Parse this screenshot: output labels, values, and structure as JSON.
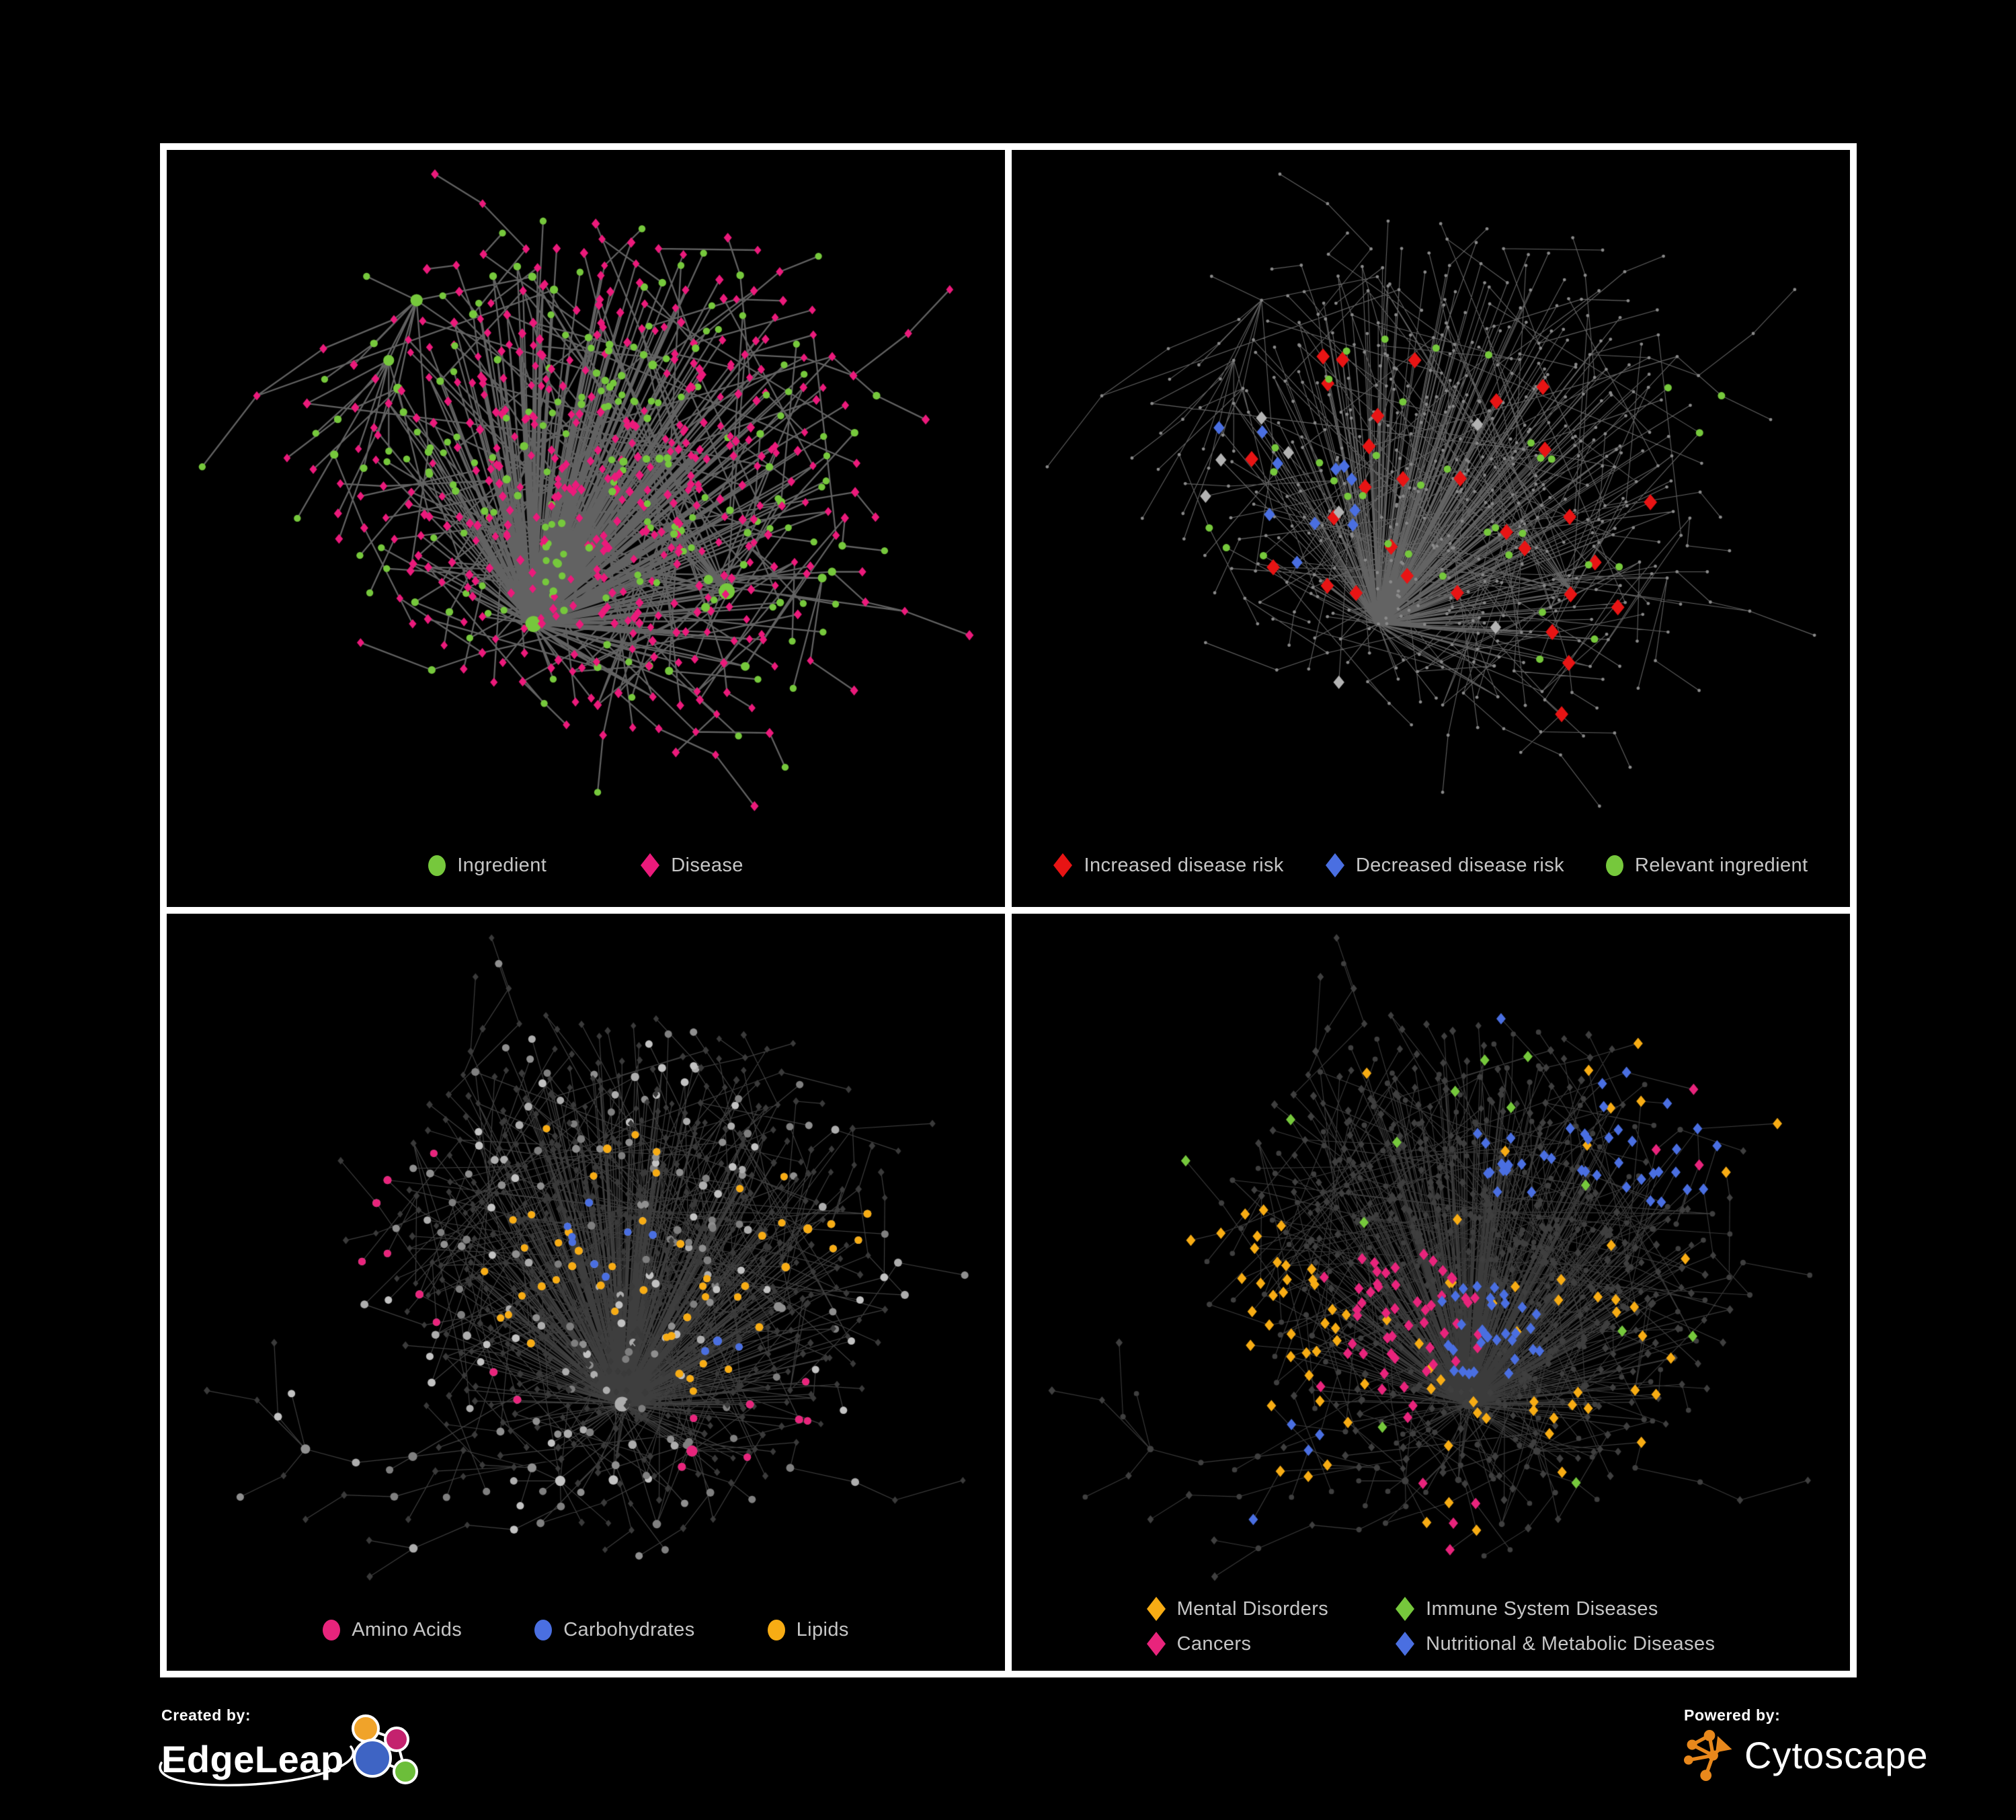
{
  "page": {
    "background": "#000000",
    "panel_border": "#FFFFFF",
    "legend_text_color": "#C6C6C6"
  },
  "footer": {
    "created_by_label": "Created by:",
    "edgeleap_name": "EdgeLeap",
    "powered_by_label": "Powered by:",
    "cytoscape_name": "Cytoscape",
    "cytoscape_orange": "#E8881C",
    "edgeleap_colors": {
      "orange": "#F0A32A",
      "magenta": "#C4226E",
      "blue": "#3E64C4",
      "green": "#6CBE3A"
    }
  },
  "networks": {
    "A": {
      "seed": 9,
      "nodes": 640,
      "extraEdges": 0.05,
      "chainBias": 0.26,
      "ingredientBase": 0.27,
      "ingredientHub": 0.72,
      "typeRegions": [
        [
          0.57,
          0.33,
          0.06,
          0.85
        ],
        [
          0.28,
          0.45,
          0.05,
          0.8
        ]
      ]
    },
    "B": {
      "seed": 23,
      "nodes": 920,
      "extraEdges": 0.06,
      "chainBias": 0.3,
      "ingredientBase": 0.3,
      "ingredientHub": 0.72,
      "typeRegions": []
    }
  },
  "panels": [
    {
      "name": "ingredient-disease-network",
      "legend": {
        "columns": 0,
        "gap": 140,
        "items": [
          {
            "label": "Ingredient",
            "shape": "circle",
            "color": "#76C83C"
          },
          {
            "label": "Disease",
            "shape": "diamond",
            "color": "#EB1A7B"
          }
        ]
      },
      "network": {
        "layout": "A",
        "hseed": 101,
        "style": {
          "edge": {
            "color": "#6F6F6F",
            "width": 2.3,
            "alpha": 0.88
          },
          "ingredient": {
            "shape": "circle",
            "color": "#76C83C",
            "rMin": 4.5,
            "rMax": 12
          },
          "disease": {
            "shape": "diamond",
            "color": "#EB1A7B",
            "size": 7
          }
        },
        "highlights": []
      }
    },
    {
      "name": "disease-risk-network",
      "legend": {
        "columns": 0,
        "gap": 62,
        "items": [
          {
            "label": "Increased disease risk",
            "shape": "diamond",
            "color": "#E81414"
          },
          {
            "label": "Decreased disease risk",
            "shape": "diamond",
            "color": "#4A6FE1"
          },
          {
            "label": "Relevant ingredient",
            "shape": "circle",
            "color": "#76C83C"
          }
        ]
      },
      "network": {
        "layout": "A",
        "hseed": 202,
        "style": {
          "edge": {
            "color": "#6E6E6E",
            "width": 1.1,
            "alpha": 0.9
          },
          "all": {
            "shape": "dot",
            "color": "#8A8A8A",
            "r": 2.4
          }
        },
        "highlights": [
          {
            "shape": "diamond",
            "color": "#E81414",
            "size": 12,
            "count": 30,
            "regions": [
              [
                0.45,
                0.45,
                0.24
              ],
              [
                0.68,
                0.6,
                0.14
              ],
              [
                0.22,
                0.52,
                0.1
              ],
              [
                0.72,
                0.85,
                0.12
              ]
            ]
          },
          {
            "shape": "diamond",
            "color": "#4A6FE1",
            "size": 10,
            "count": 11,
            "regions": [
              [
                0.3,
                0.5,
                0.13
              ],
              [
                0.87,
                0.33,
                0.06
              ]
            ]
          },
          {
            "shape": "diamond",
            "color": "#B3B3B3",
            "size": 10,
            "count": 8,
            "regions": [
              [
                0.45,
                0.55,
                0.3
              ]
            ]
          },
          {
            "shape": "circle",
            "color": "#76C83C",
            "size": 5.5,
            "count": 36,
            "regions": [
              [
                0.45,
                0.46,
                0.22
              ],
              [
                0.29,
                0.48,
                0.13
              ],
              [
                0.7,
                0.72,
                0.12
              ],
              [
                0.85,
                0.35,
                0.08
              ]
            ]
          }
        ]
      }
    },
    {
      "name": "ingredient-classes-network",
      "legend": {
        "columns": 0,
        "gap": 108,
        "items": [
          {
            "label": "Amino Acids",
            "shape": "circle",
            "color": "#E8247C"
          },
          {
            "label": "Carbohydrates",
            "shape": "circle",
            "color": "#4A6FE1"
          },
          {
            "label": "Lipids",
            "shape": "circle",
            "color": "#F7AC14"
          }
        ]
      },
      "network": {
        "layout": "B",
        "hseed": 303,
        "style": {
          "edge": {
            "color": "#9B9B9B",
            "width": 1.2,
            "alpha": 0.4
          },
          "ingredient": {
            "shape": "circle",
            "palette": [
              "#ADADAD",
              "#8F8F8F",
              "#C2C2C2",
              "#7F7F7F"
            ],
            "rMin": 5,
            "rMax": 11
          },
          "disease": {
            "shape": "diamond",
            "color": "#3A3A3A",
            "size": 5.5
          }
        },
        "highlights": [
          {
            "target": "ingredient",
            "color": "#F7AC14",
            "count": 50,
            "regions": [
              [
                0.52,
                0.38,
                0.13
              ],
              [
                0.5,
                0.55,
                0.15
              ],
              [
                0.66,
                0.63,
                0.1
              ],
              [
                0.78,
                0.42,
                0.1
              ],
              [
                0.33,
                0.1,
                0.05
              ]
            ]
          },
          {
            "target": "ingredient",
            "color": "#E8247C",
            "count": 17,
            "regions": [
              [
                0.2,
                0.32,
                0.12
              ],
              [
                0.3,
                0.78,
                0.14
              ],
              [
                0.74,
                0.8,
                0.12
              ],
              [
                0.93,
                0.32,
                0.06
              ],
              [
                0.25,
                0.55,
                0.08
              ]
            ]
          },
          {
            "target": "ingredient",
            "color": "#4A6FE1",
            "count": 11,
            "regions": [
              [
                0.5,
                0.44,
                0.1
              ],
              [
                0.08,
                0.3,
                0.05
              ],
              [
                0.33,
                0.07,
                0.04
              ],
              [
                0.7,
                0.62,
                0.06
              ]
            ]
          }
        ]
      }
    },
    {
      "name": "disease-categories-network",
      "legend": {
        "columns": 2,
        "gap": 100,
        "items": [
          {
            "label": "Mental Disorders",
            "shape": "diamond",
            "color": "#F7AC14"
          },
          {
            "label": "Immune System Diseases",
            "shape": "diamond",
            "color": "#76C83C"
          },
          {
            "label": "Cancers",
            "shape": "diamond",
            "color": "#E8247C"
          },
          {
            "label": "Nutritional & Metabolic Diseases",
            "shape": "diamond",
            "color": "#4A6FE1"
          }
        ]
      },
      "network": {
        "layout": "B",
        "hseed": 404,
        "style": {
          "edge": {
            "color": "#6C6C6C",
            "width": 1.1,
            "alpha": 0.55
          },
          "ingredient": {
            "shape": "circle",
            "color": "#3F3F3F",
            "rMin": 3.5,
            "rMax": 7.5
          },
          "disease": {
            "shape": "diamond",
            "color": "#3F3F3F",
            "size": 6
          }
        },
        "highlights": [
          {
            "target": "disease",
            "shape": "diamond",
            "color": "#F7AC14",
            "size": 8.5,
            "count": 85,
            "regions": [
              [
                0.22,
                0.53,
                0.13
              ],
              [
                0.28,
                0.62,
                0.1
              ],
              [
                0.3,
                0.14,
                0.05
              ],
              [
                0.17,
                0.76,
                0.05
              ]
            ]
          },
          {
            "target": "disease",
            "shape": "diamond",
            "color": "#E8247C",
            "size": 8.5,
            "count": 58,
            "regions": [
              [
                0.45,
                0.6,
                0.12
              ],
              [
                0.42,
                0.68,
                0.09
              ],
              [
                0.87,
                0.3,
                0.08
              ],
              [
                0.52,
                0.9,
                0.07
              ],
              [
                0.23,
                0.08,
                0.04
              ]
            ]
          },
          {
            "target": "disease",
            "shape": "diamond",
            "color": "#4A6FE1",
            "size": 8.5,
            "count": 78,
            "regions": [
              [
                0.57,
                0.62,
                0.08
              ],
              [
                0.8,
                0.3,
                0.12
              ],
              [
                0.6,
                0.08,
                0.08
              ],
              [
                0.3,
                0.85,
                0.09
              ],
              [
                0.33,
                0.64,
                0.05
              ],
              [
                0.16,
                0.14,
                0.07
              ],
              [
                0.6,
                0.35,
                0.06
              ]
            ]
          },
          {
            "target": "disease",
            "shape": "diamond",
            "color": "#76C83C",
            "size": 8.5,
            "count": 13,
            "regions": [
              [
                0.5,
                0.5,
                0.45
              ]
            ]
          }
        ]
      }
    }
  ]
}
